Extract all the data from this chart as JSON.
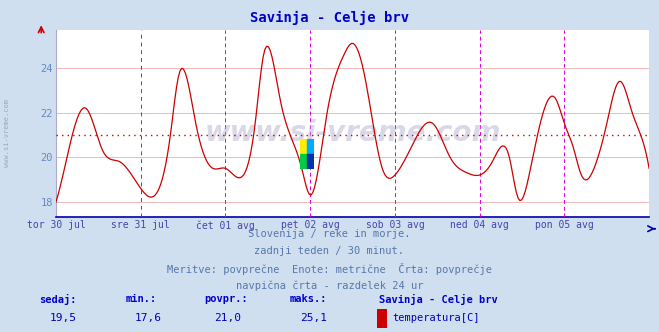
{
  "title": "Savinja - Celje brv",
  "title_color": "#0000cc",
  "bg_color": "#d0dff0",
  "plot_bg_color": "#ffffff",
  "grid_color": "#f0b8b8",
  "axis_color": "#4444aa",
  "line_color": "#cc0000",
  "avg_line_color": "#cc0000",
  "avg_value": 21.0,
  "ylim": [
    17.3,
    25.7
  ],
  "yticks": [
    18,
    20,
    22,
    24
  ],
  "ylabel_color": "#6688bb",
  "xticklabels": [
    "tor 30 jul",
    "sre 31 jul",
    "čet 01 avg",
    "pet 02 avg",
    "sob 03 avg",
    "ned 04 avg",
    "pon 05 avg"
  ],
  "vline_color_magenta": "#dd00dd",
  "vline_color_dark": "#555555",
  "num_points": 336,
  "watermark": "www.si-vreme.com",
  "footer_line1": "Slovenija / reke in morje.",
  "footer_line2": "zadnji teden / 30 minut.",
  "footer_line3": "Meritve: povprečne  Enote: metrične  Črta: povprečje",
  "footer_line4": "navpična črta - razdelek 24 ur",
  "footer_color": "#5577aa",
  "stats_label_color": "#0000cc",
  "stats_value_color": "#0000bb",
  "sedaj": 19.5,
  "min_val": 17.6,
  "povpr": 21.0,
  "maks": 25.1,
  "legend_title": "Savinja - Celje brv",
  "legend_label": "temperatura[C]",
  "legend_color": "#cc0000",
  "left_watermark": "www.si-vreme.com"
}
